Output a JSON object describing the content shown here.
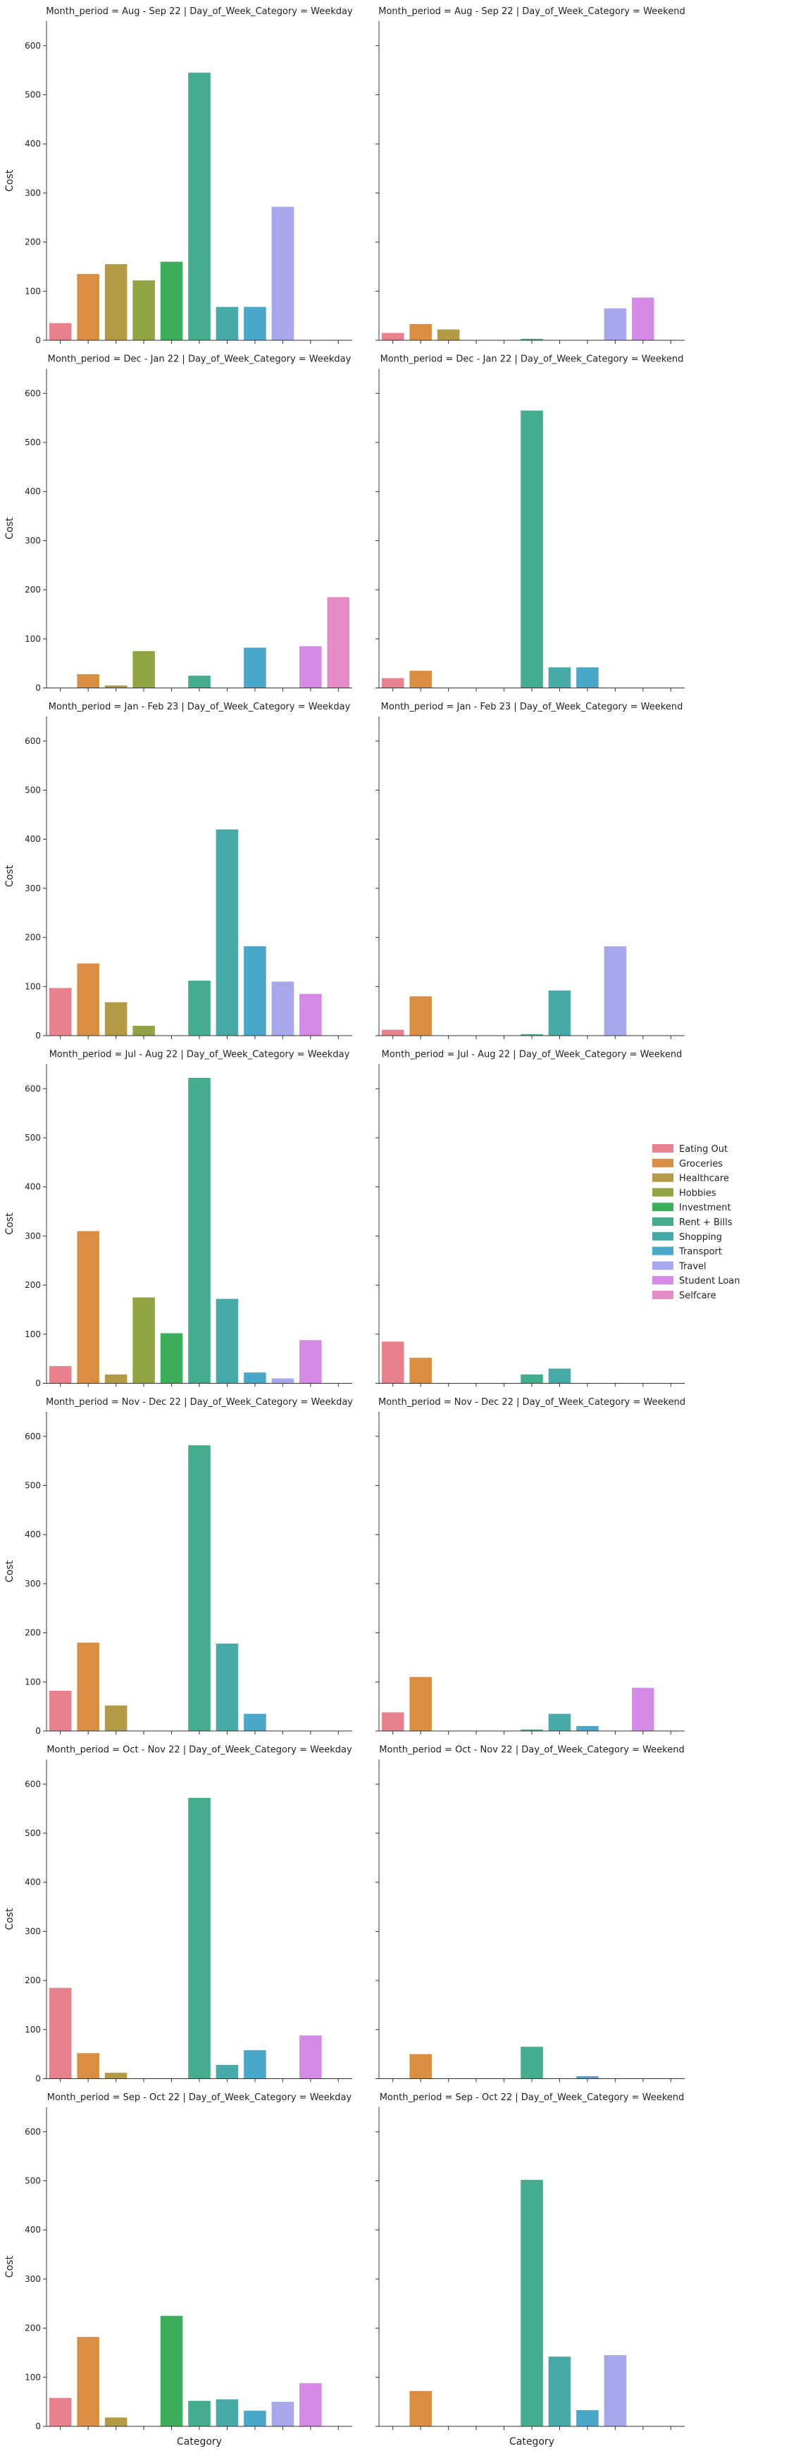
{
  "chart_data": {
    "type": "bar",
    "layout": "facet-grid",
    "row_variable": "Month_period",
    "col_variable": "Day_of_Week_Category",
    "ylabel": "Cost",
    "xlabel": "Category",
    "ylim": [
      0,
      650
    ],
    "yticks": [
      0,
      100,
      200,
      300,
      400,
      500,
      600
    ],
    "legend_position": "right",
    "categories": [
      "Eating Out",
      "Groceries",
      "Healthcare",
      "Hobbies",
      "Investment",
      "Rent + Bills",
      "Shopping",
      "Transport",
      "Travel",
      "Student Loan",
      "Selfcare"
    ],
    "colors": [
      "#e8808e",
      "#d98e42",
      "#b59a45",
      "#8fa543",
      "#3fae5c",
      "#45ac8e",
      "#48aaa8",
      "#4aa7c8",
      "#a7a7ec",
      "#d58ae6",
      "#e78ac8"
    ],
    "facets": [
      {
        "title": "Month_period = Aug - Sep 22 | Day_of_Week_Category = Weekday",
        "values": [
          35,
          135,
          155,
          122,
          160,
          545,
          68,
          68,
          272,
          0,
          0
        ]
      },
      {
        "title": "Month_period = Aug - Sep 22 | Day_of_Week_Category = Weekend",
        "values": [
          15,
          33,
          22,
          0,
          0,
          3,
          0,
          0,
          65,
          87,
          0
        ]
      },
      {
        "title": "Month_period = Dec - Jan 22 | Day_of_Week_Category = Weekday",
        "values": [
          0,
          28,
          5,
          75,
          0,
          25,
          0,
          82,
          0,
          85,
          185
        ]
      },
      {
        "title": "Month_period = Dec - Jan 22 | Day_of_Week_Category = Weekend",
        "values": [
          20,
          35,
          0,
          0,
          0,
          565,
          42,
          42,
          0,
          0,
          0
        ]
      },
      {
        "title": "Month_period = Jan - Feb 23 | Day_of_Week_Category = Weekday",
        "values": [
          97,
          147,
          68,
          20,
          0,
          112,
          420,
          182,
          110,
          85,
          0
        ]
      },
      {
        "title": "Month_period = Jan - Feb 23 | Day_of_Week_Category = Weekend",
        "values": [
          12,
          80,
          0,
          0,
          0,
          3,
          92,
          0,
          182,
          0,
          0
        ]
      },
      {
        "title": "Month_period = Jul - Aug 22 | Day_of_Week_Category = Weekday",
        "values": [
          35,
          310,
          18,
          175,
          102,
          622,
          172,
          22,
          10,
          88,
          0
        ]
      },
      {
        "title": "Month_period = Jul - Aug 22 | Day_of_Week_Category = Weekend",
        "values": [
          85,
          52,
          0,
          0,
          0,
          18,
          30,
          0,
          0,
          0,
          0
        ]
      },
      {
        "title": "Month_period = Nov - Dec 22 | Day_of_Week_Category = Weekday",
        "values": [
          82,
          180,
          52,
          0,
          0,
          582,
          178,
          35,
          0,
          0,
          0
        ]
      },
      {
        "title": "Month_period = Nov - Dec 22 | Day_of_Week_Category = Weekend",
        "values": [
          38,
          110,
          0,
          0,
          0,
          3,
          35,
          10,
          0,
          88,
          0
        ]
      },
      {
        "title": "Month_period = Oct - Nov 22 | Day_of_Week_Category = Weekday",
        "values": [
          185,
          52,
          12,
          0,
          0,
          572,
          28,
          58,
          0,
          88,
          0
        ]
      },
      {
        "title": "Month_period = Oct - Nov 22 | Day_of_Week_Category = Weekend",
        "values": [
          0,
          50,
          0,
          0,
          0,
          65,
          0,
          5,
          0,
          0,
          0
        ]
      },
      {
        "title": "Month_period = Sep - Oct 22 | Day_of_Week_Category = Weekday",
        "values": [
          58,
          182,
          18,
          0,
          225,
          52,
          55,
          32,
          50,
          88,
          0
        ]
      },
      {
        "title": "Month_period = Sep - Oct 22 | Day_of_Week_Category = Weekend",
        "values": [
          0,
          72,
          0,
          0,
          0,
          502,
          142,
          33,
          145,
          0,
          0
        ]
      }
    ]
  }
}
